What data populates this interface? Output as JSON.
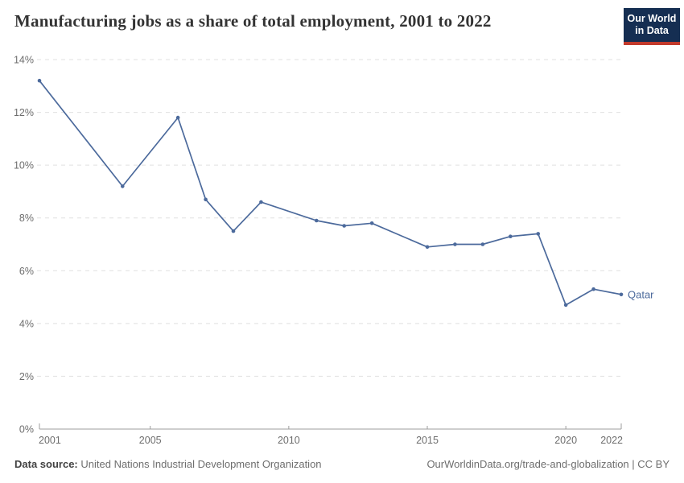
{
  "header": {
    "title": "Manufacturing jobs as a share of total employment, 2001 to 2022",
    "logo": {
      "line1": "Our World",
      "line2": "in Data",
      "bg_color": "#152e52",
      "bar_color": "#c23a2c"
    }
  },
  "chart_data": {
    "type": "line",
    "title": "Manufacturing jobs as a share of total employment, 2001 to 2022",
    "xlabel": "",
    "ylabel": "",
    "xlim": [
      2001,
      2022
    ],
    "ylim": [
      0,
      14
    ],
    "x_ticks": [
      2001,
      2005,
      2010,
      2015,
      2020,
      2022
    ],
    "y_ticks": [
      0,
      2,
      4,
      6,
      8,
      10,
      12,
      14
    ],
    "y_tick_suffix": "%",
    "grid": "horizontal-dashed",
    "legend_position": "end-of-line-label",
    "series": [
      {
        "name": "Qatar",
        "color": "#4c6a9c",
        "points": [
          [
            2001,
            13.2
          ],
          [
            2004,
            9.2
          ],
          [
            2006,
            11.8
          ],
          [
            2007,
            8.7
          ],
          [
            2008,
            7.5
          ],
          [
            2009,
            8.6
          ],
          [
            2011,
            7.9
          ],
          [
            2012,
            7.7
          ],
          [
            2013,
            7.8
          ],
          [
            2015,
            6.9
          ],
          [
            2016,
            7.0
          ],
          [
            2017,
            7.0
          ],
          [
            2018,
            7.3
          ],
          [
            2019,
            7.4
          ],
          [
            2020,
            4.7
          ],
          [
            2021,
            5.3
          ],
          [
            2022,
            5.1
          ]
        ]
      }
    ]
  },
  "footer": {
    "source_label": "Data source:",
    "source_value": "United Nations Industrial Development Organization",
    "credit": "OurWorldinData.org/trade-and-globalization | CC BY"
  }
}
